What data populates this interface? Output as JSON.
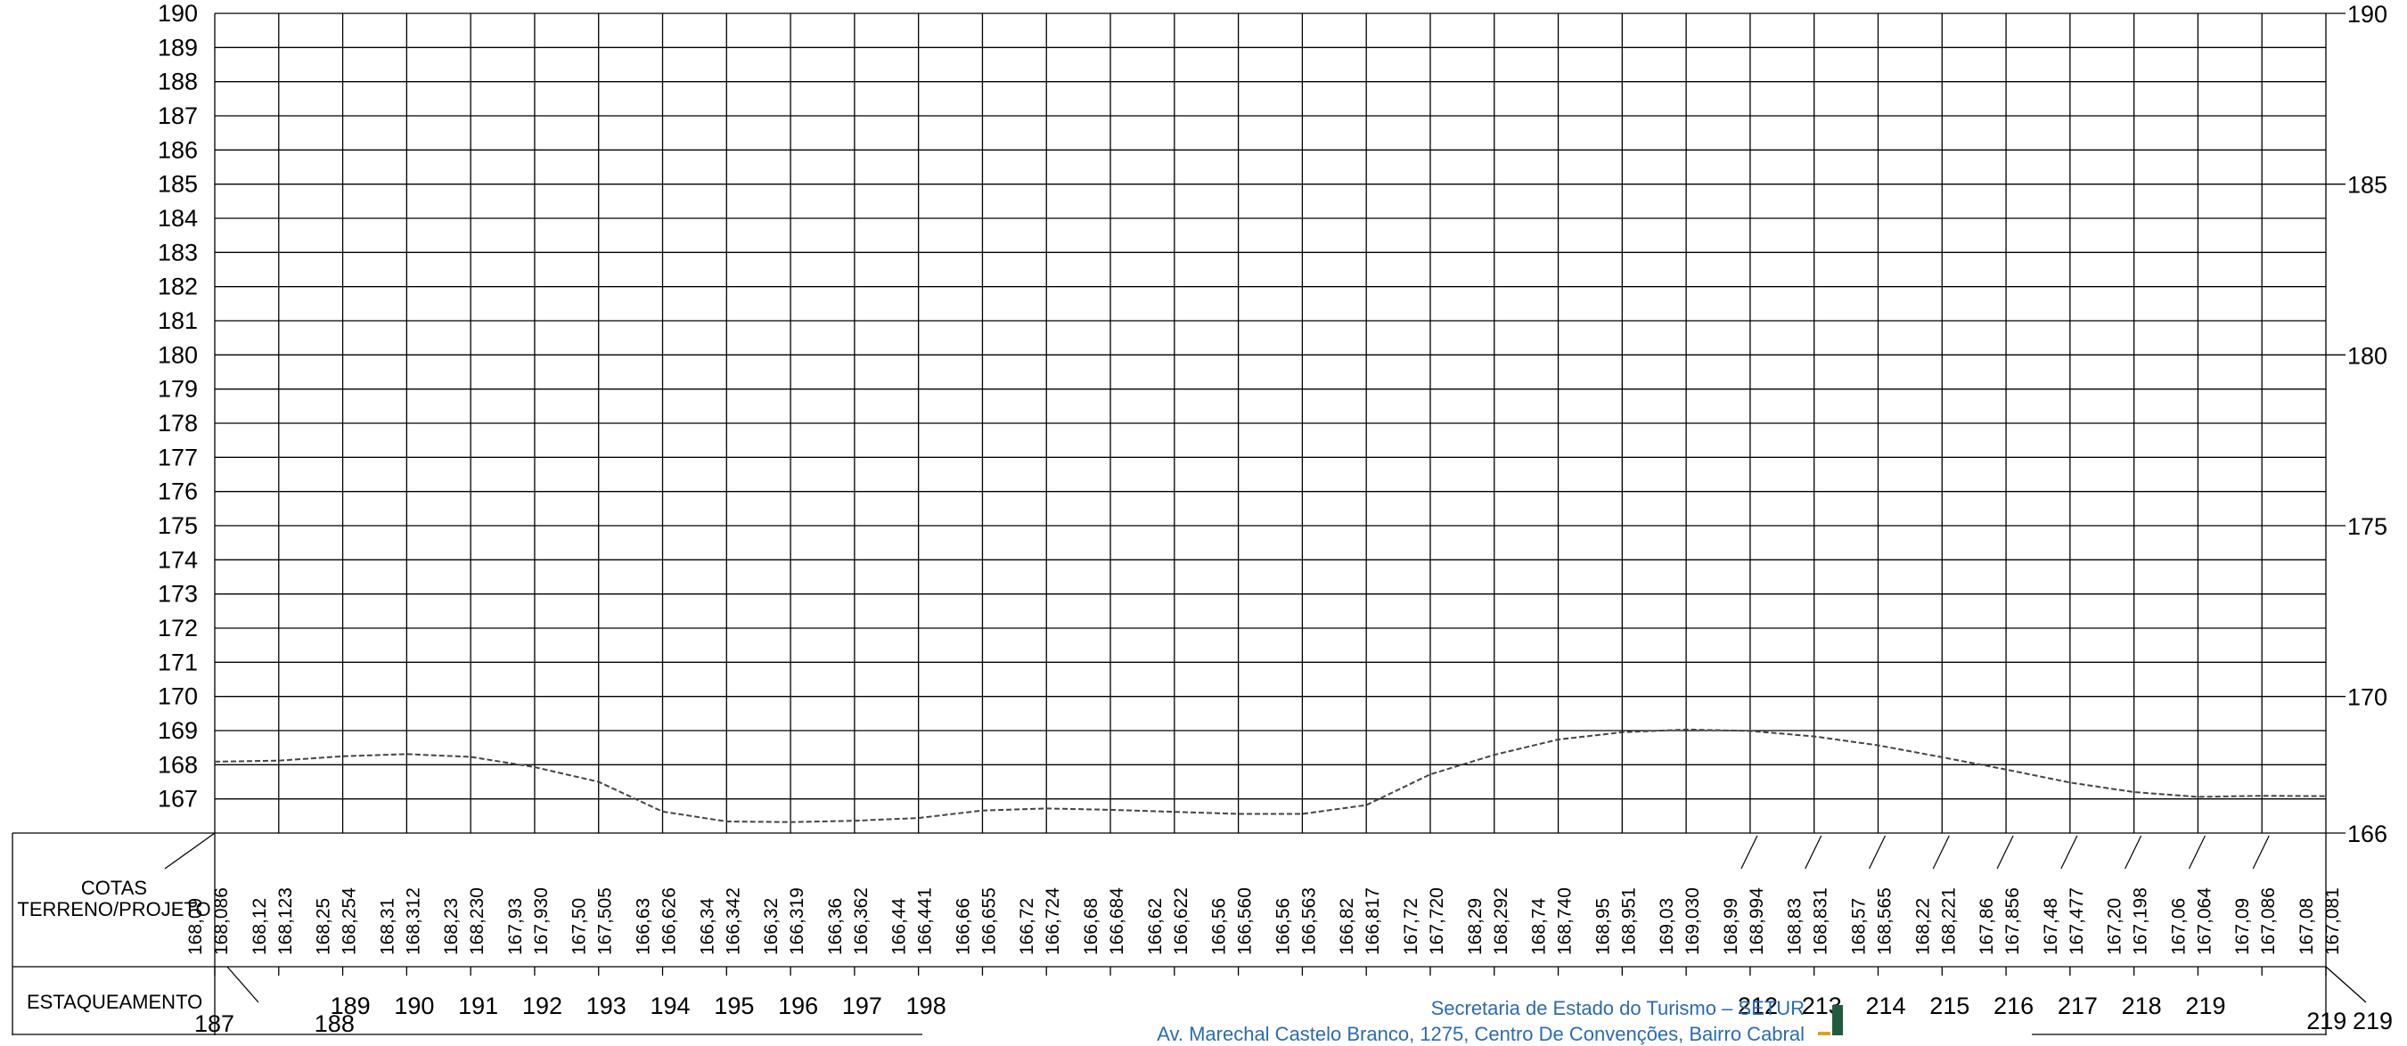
{
  "profile": {
    "y_axis_range": [
      166,
      190
    ],
    "left_tick_labels": [
      "167",
      "168",
      "169",
      "170",
      "171",
      "172",
      "173",
      "174",
      "175",
      "176",
      "177",
      "178",
      "179",
      "180",
      "181",
      "182",
      "183",
      "184",
      "185",
      "186",
      "187",
      "188",
      "189",
      "190"
    ],
    "right_tick_labels": [
      "166",
      "170",
      "175",
      "180",
      "185",
      "190"
    ],
    "row_labels": {
      "cotas": "COTAS\nTERRENO/PROJETO",
      "estaqueamento": "ESTAQUEAMENTO"
    },
    "stations": [
      {
        "station": "187",
        "terrain": "168,09",
        "project": "168,086"
      },
      {
        "station": "188",
        "terrain": "168,12",
        "project": "168,123"
      },
      {
        "station": "189",
        "terrain": "168,25",
        "project": "168,254"
      },
      {
        "station": "190",
        "terrain": "168,31",
        "project": "168,312"
      },
      {
        "station": "191",
        "terrain": "168,23",
        "project": "168,230"
      },
      {
        "station": "192",
        "terrain": "167,93",
        "project": "167,930"
      },
      {
        "station": "193",
        "terrain": "167,50",
        "project": "167,505"
      },
      {
        "station": "194",
        "terrain": "166,63",
        "project": "166,626"
      },
      {
        "station": "195",
        "terrain": "166,34",
        "project": "166,342"
      },
      {
        "station": "196",
        "terrain": "166,32",
        "project": "166,319"
      },
      {
        "station": "197",
        "terrain": "166,36",
        "project": "166,362"
      },
      {
        "station": "198",
        "terrain": "166,44",
        "project": "166,441"
      },
      {
        "station": "",
        "terrain": "166,66",
        "project": "166,655"
      },
      {
        "station": "",
        "terrain": "166,72",
        "project": "166,724"
      },
      {
        "station": "",
        "terrain": "166,68",
        "project": "166,684"
      },
      {
        "station": "",
        "terrain": "166,62",
        "project": "166,622"
      },
      {
        "station": "",
        "terrain": "166,56",
        "project": "166,560"
      },
      {
        "station": "",
        "terrain": "166,56",
        "project": "166,563"
      },
      {
        "station": "",
        "terrain": "166,82",
        "project": "166,817"
      },
      {
        "station": "",
        "terrain": "167,72",
        "project": "167,720"
      },
      {
        "station": "",
        "terrain": "168,29",
        "project": "168,292"
      },
      {
        "station": "",
        "terrain": "168,74",
        "project": "168,740"
      },
      {
        "station": "",
        "terrain": "168,95",
        "project": "168,951"
      },
      {
        "station": "",
        "terrain": "169,03",
        "project": "169,030"
      },
      {
        "station": "212",
        "terrain": "168,99",
        "project": "168,994"
      },
      {
        "station": "213",
        "terrain": "168,83",
        "project": "168,831"
      },
      {
        "station": "214",
        "terrain": "168,57",
        "project": "168,565"
      },
      {
        "station": "215",
        "terrain": "168,22",
        "project": "168,221"
      },
      {
        "station": "216",
        "terrain": "167,86",
        "project": "167,856"
      },
      {
        "station": "217",
        "terrain": "167,48",
        "project": "167,477"
      },
      {
        "station": "218",
        "terrain": "167,20",
        "project": "167,198"
      },
      {
        "station": "219",
        "terrain": "167,06",
        "project": "167,064"
      },
      {
        "station": "219",
        "terrain": "167,09",
        "project": "167,086"
      },
      {
        "station": "",
        "terrain": "167,08",
        "project": "167,081"
      }
    ]
  },
  "footer": {
    "line1": "Secretaria de Estado do Turismo – SETUR",
    "line2": "Av. Marechal Castelo Branco, 1275, Centro De Convenções, Bairro Cabral"
  },
  "colors": {
    "grid": "#000000",
    "profile_line": "#444444",
    "footer_text": "#2a6bb5",
    "logo_green": "#1f5b3f",
    "logo_yellow": "#e2a020"
  }
}
